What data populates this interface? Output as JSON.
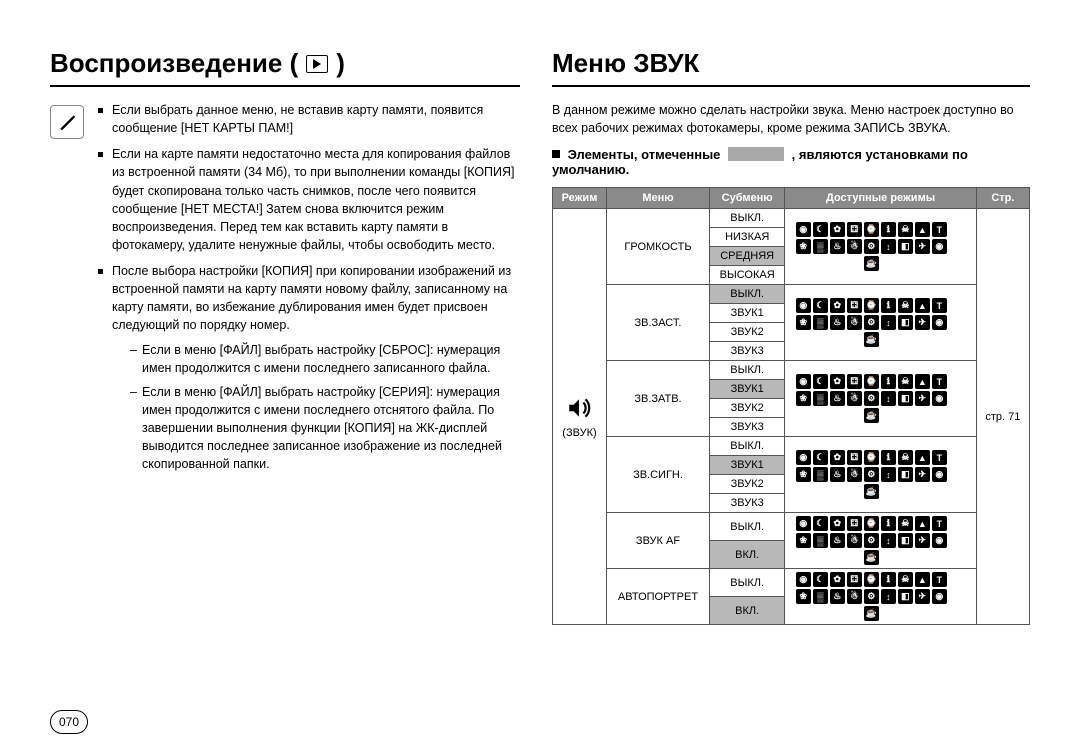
{
  "page_number": "070",
  "left": {
    "title": "Воспроизведение (",
    "title_suffix": ")",
    "bullets": [
      "Если выбрать данное меню, не вставив карту памяти, появится сообщение [НЕТ КАРТЫ ПАМ!]",
      "Если на карте памяти недостаточно места для копирования файлов из встроенной памяти (34 Мб), то при выполнении команды [КОПИЯ] будет скопирована только часть снимков, после чего появится сообщение [НЕТ МЕСТА!] Затем снова включится режим воспроизведения. Перед тем как вставить карту памяти в фотокамеру, удалите ненужные файлы, чтобы освободить место.",
      "После выбора настройки [КОПИЯ] при копировании изображений из встроенной памяти на карту памяти новому файлу, записанному на карту памяти, во избежание дублирования имен будет присвоен следующий по порядку номер."
    ],
    "sub_bullets": [
      "Если в меню [ФАЙЛ] выбрать настройку [СБРОС]: нумерация имен продолжится с имени последнего записанного файла.",
      "Если в меню [ФАЙЛ] выбрать настройку [СЕРИЯ]: нумерация имен продолжится с имени последнего отснятого файла. По завершении выполнения функции [КОПИЯ] на ЖК-дисплей выводится последнее записанное изображение из последней скопированной папки."
    ]
  },
  "right": {
    "title": "Меню ЗВУК",
    "intro": "В данном режиме можно сделать настройки звука. Меню настроек доступно во всех рабочих режимах фотокамеры, кроме режима ЗАПИСЬ ЗВУКА.",
    "defaults_prefix": "Элементы, отмеченные",
    "defaults_suffix": ", являются установками по умолчанию.",
    "page_ref": "стр. 71",
    "table": {
      "headers": [
        "Режим",
        "Меню",
        "Субменю",
        "Доступные режимы",
        "Стр."
      ],
      "mode_label": "(ЗВУК)",
      "menus": [
        {
          "name": "ГРОМКОСТЬ",
          "sub": [
            "ВЫКЛ.",
            "НИЗКАЯ",
            "СРЕДНЯЯ",
            "ВЫСОКАЯ"
          ],
          "default_idx": 2
        },
        {
          "name": "ЗВ.ЗАСТ.",
          "sub": [
            "ВЫКЛ.",
            "ЗВУК1",
            "ЗВУК2",
            "ЗВУК3"
          ],
          "default_idx": 0
        },
        {
          "name": "ЗВ.ЗАТВ.",
          "sub": [
            "ВЫКЛ.",
            "ЗВУК1",
            "ЗВУК2",
            "ЗВУК3"
          ],
          "default_idx": 1
        },
        {
          "name": "ЗВ.СИГН.",
          "sub": [
            "ВЫКЛ.",
            "ЗВУК1",
            "ЗВУК2",
            "ЗВУК3"
          ],
          "default_idx": 1
        },
        {
          "name": "ЗВУК AF",
          "sub": [
            "ВЫКЛ.",
            "ВКЛ."
          ],
          "default_idx": 1
        },
        {
          "name": "АВТОПОРТРЕТ",
          "sub": [
            "ВЫКЛ.",
            "ВКЛ."
          ],
          "default_idx": 1
        }
      ],
      "mode_icon_count": 19
    }
  },
  "colors": {
    "header_bg": "#8a8a8a",
    "highlight_bg": "#b8b8b8",
    "border": "#555555"
  }
}
